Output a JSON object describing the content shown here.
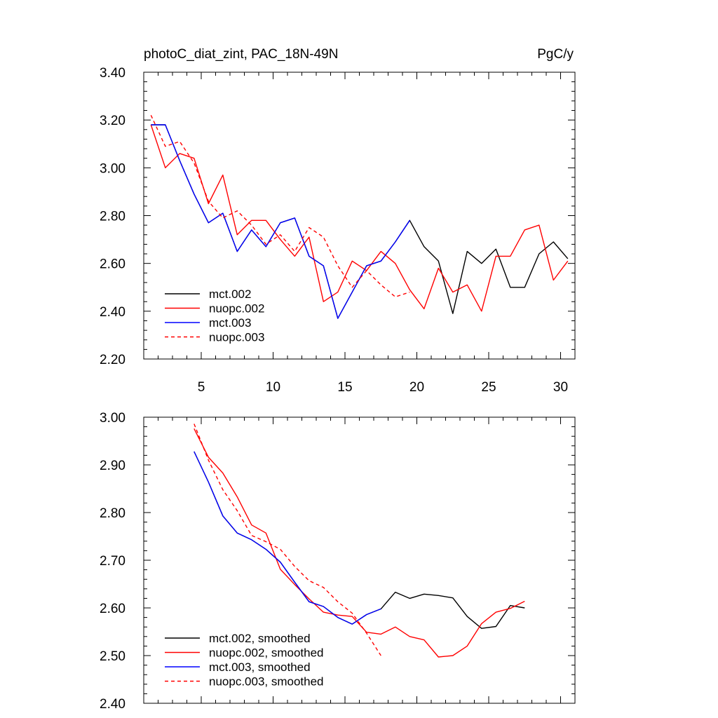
{
  "chart_data": [
    {
      "type": "line",
      "title": "photoC_diat_zint, PAC_18N-49N",
      "units": "PgC/y",
      "xlim": [
        1,
        31
      ],
      "ylim": [
        2.2,
        3.4
      ],
      "xticks": [
        5,
        10,
        15,
        20,
        25,
        30
      ],
      "xtick_labels": [
        "5",
        "10",
        "15",
        "20",
        "25",
        "30"
      ],
      "yticks": [
        2.2,
        2.4,
        2.6,
        2.8,
        3.0,
        3.2,
        3.4
      ],
      "ytick_labels": [
        "2.20",
        "2.40",
        "2.60",
        "2.80",
        "3.00",
        "3.20",
        "3.40"
      ],
      "legend_position": "bottom-left",
      "series": [
        {
          "name": "mct.002",
          "color": "#000000",
          "dash": "solid",
          "x": [
            1.5,
            2.5,
            3.5,
            4.5,
            5.5,
            6.5,
            7.5,
            8.5,
            9.5,
            10.5,
            11.5,
            12.5,
            13.5,
            14.5,
            15.5,
            16.5,
            17.5,
            18.5,
            19.5,
            20.5,
            21.5,
            22.5,
            23.5,
            24.5,
            25.5,
            26.5,
            27.5,
            28.5,
            29.5,
            30.5
          ],
          "y": [
            3.18,
            3.18,
            3.03,
            2.89,
            2.77,
            2.81,
            2.65,
            2.74,
            2.67,
            2.77,
            2.79,
            2.63,
            2.59,
            2.37,
            2.48,
            2.59,
            2.61,
            2.69,
            2.78,
            2.67,
            2.61,
            2.39,
            2.65,
            2.6,
            2.66,
            2.5,
            2.5,
            2.64,
            2.69,
            2.62
          ]
        },
        {
          "name": "nuopc.002",
          "color": "#ff0000",
          "dash": "solid",
          "x": [
            1.5,
            2.5,
            3.5,
            4.5,
            5.5,
            6.5,
            7.5,
            8.5,
            9.5,
            10.5,
            11.5,
            12.5,
            13.5,
            14.5,
            15.5,
            16.5,
            17.5,
            18.5,
            19.5,
            20.5,
            21.5,
            22.5,
            23.5,
            24.5,
            25.5,
            26.5,
            27.5,
            28.5,
            29.5,
            30.5
          ],
          "y": [
            3.18,
            3.0,
            3.06,
            3.04,
            2.85,
            2.97,
            2.72,
            2.78,
            2.78,
            2.7,
            2.63,
            2.71,
            2.44,
            2.48,
            2.61,
            2.57,
            2.65,
            2.6,
            2.49,
            2.41,
            2.58,
            2.48,
            2.51,
            2.4,
            2.63,
            2.63,
            2.74,
            2.76,
            2.53,
            2.61
          ]
        },
        {
          "name": "mct.003",
          "color": "#0000ff",
          "dash": "solid",
          "x": [
            1.5,
            2.5,
            3.5,
            4.5,
            5.5,
            6.5,
            7.5,
            8.5,
            9.5,
            10.5,
            11.5,
            12.5,
            13.5,
            14.5,
            15.5,
            16.5,
            17.5,
            18.5,
            19.5
          ],
          "y": [
            3.18,
            3.18,
            3.03,
            2.89,
            2.77,
            2.81,
            2.65,
            2.74,
            2.67,
            2.77,
            2.79,
            2.63,
            2.59,
            2.37,
            2.48,
            2.59,
            2.61,
            2.69,
            2.78
          ]
        },
        {
          "name": "nuopc.003",
          "color": "#ff0000",
          "dash": "dashed",
          "x": [
            1.5,
            2.5,
            3.5,
            4.5,
            5.5,
            6.5,
            7.5,
            8.5,
            9.5,
            10.5,
            11.5,
            12.5,
            13.5,
            14.5,
            15.5,
            16.5,
            17.5,
            18.5,
            19.5
          ],
          "y": [
            3.22,
            3.09,
            3.11,
            3.02,
            2.86,
            2.79,
            2.82,
            2.76,
            2.68,
            2.72,
            2.65,
            2.75,
            2.71,
            2.59,
            2.5,
            2.57,
            2.51,
            2.46,
            2.48
          ]
        }
      ]
    },
    {
      "type": "line",
      "title": "",
      "units": "",
      "xlim": [
        1,
        31
      ],
      "ylim": [
        2.4,
        3.0
      ],
      "xticks": [
        5,
        10,
        15,
        20,
        25,
        30
      ],
      "xtick_labels": [],
      "yticks": [
        2.4,
        2.5,
        2.6,
        2.7,
        2.8,
        2.9,
        3.0
      ],
      "ytick_labels": [
        "2.40",
        "2.50",
        "2.60",
        "2.70",
        "2.80",
        "2.90",
        "3.00"
      ],
      "legend_position": "bottom-left",
      "series": [
        {
          "name": "mct.002, smoothed",
          "color": "#000000",
          "dash": "solid",
          "x": [
            4.5,
            5.5,
            6.5,
            7.5,
            8.5,
            9.5,
            10.5,
            11.5,
            12.5,
            13.5,
            14.5,
            15.5,
            16.5,
            17.5,
            18.5,
            19.5,
            20.5,
            21.5,
            22.5,
            23.5,
            24.5,
            25.5,
            26.5,
            27.5
          ],
          "y": [
            2.928,
            2.864,
            2.793,
            2.757,
            2.743,
            2.723,
            2.696,
            2.654,
            2.613,
            2.603,
            2.58,
            2.566,
            2.586,
            2.598,
            2.633,
            2.62,
            2.629,
            2.626,
            2.621,
            2.582,
            2.557,
            2.561,
            2.605,
            2.6
          ]
        },
        {
          "name": "nuopc.002, smoothed",
          "color": "#ff0000",
          "dash": "solid",
          "x": [
            4.5,
            5.5,
            6.5,
            7.5,
            8.5,
            9.5,
            10.5,
            11.5,
            12.5,
            13.5,
            14.5,
            15.5,
            16.5,
            17.5,
            18.5,
            19.5,
            20.5,
            21.5,
            22.5,
            23.5,
            24.5,
            25.5,
            26.5,
            27.5
          ],
          "y": [
            2.976,
            2.916,
            2.883,
            2.833,
            2.774,
            2.757,
            2.681,
            2.649,
            2.619,
            2.591,
            2.585,
            2.582,
            2.549,
            2.545,
            2.56,
            2.54,
            2.533,
            2.497,
            2.5,
            2.52,
            2.567,
            2.591,
            2.599,
            2.614
          ]
        },
        {
          "name": "mct.003, smoothed",
          "color": "#0000ff",
          "dash": "solid",
          "x": [
            4.5,
            5.5,
            6.5,
            7.5,
            8.5,
            9.5,
            10.5,
            11.5,
            12.5,
            13.5,
            14.5,
            15.5,
            16.5,
            17.5
          ],
          "y": [
            2.928,
            2.864,
            2.793,
            2.757,
            2.743,
            2.723,
            2.696,
            2.654,
            2.613,
            2.603,
            2.58,
            2.566,
            2.586,
            2.598
          ]
        },
        {
          "name": "nuopc.003, smoothed",
          "color": "#ff0000",
          "dash": "dashed",
          "x": [
            4.5,
            5.5,
            6.5,
            7.5,
            8.5,
            9.5,
            10.5,
            11.5,
            12.5,
            13.5,
            14.5,
            15.5,
            16.5,
            17.5
          ],
          "y": [
            2.986,
            2.91,
            2.848,
            2.804,
            2.752,
            2.739,
            2.723,
            2.687,
            2.657,
            2.643,
            2.613,
            2.589,
            2.547,
            2.5
          ]
        }
      ]
    }
  ]
}
